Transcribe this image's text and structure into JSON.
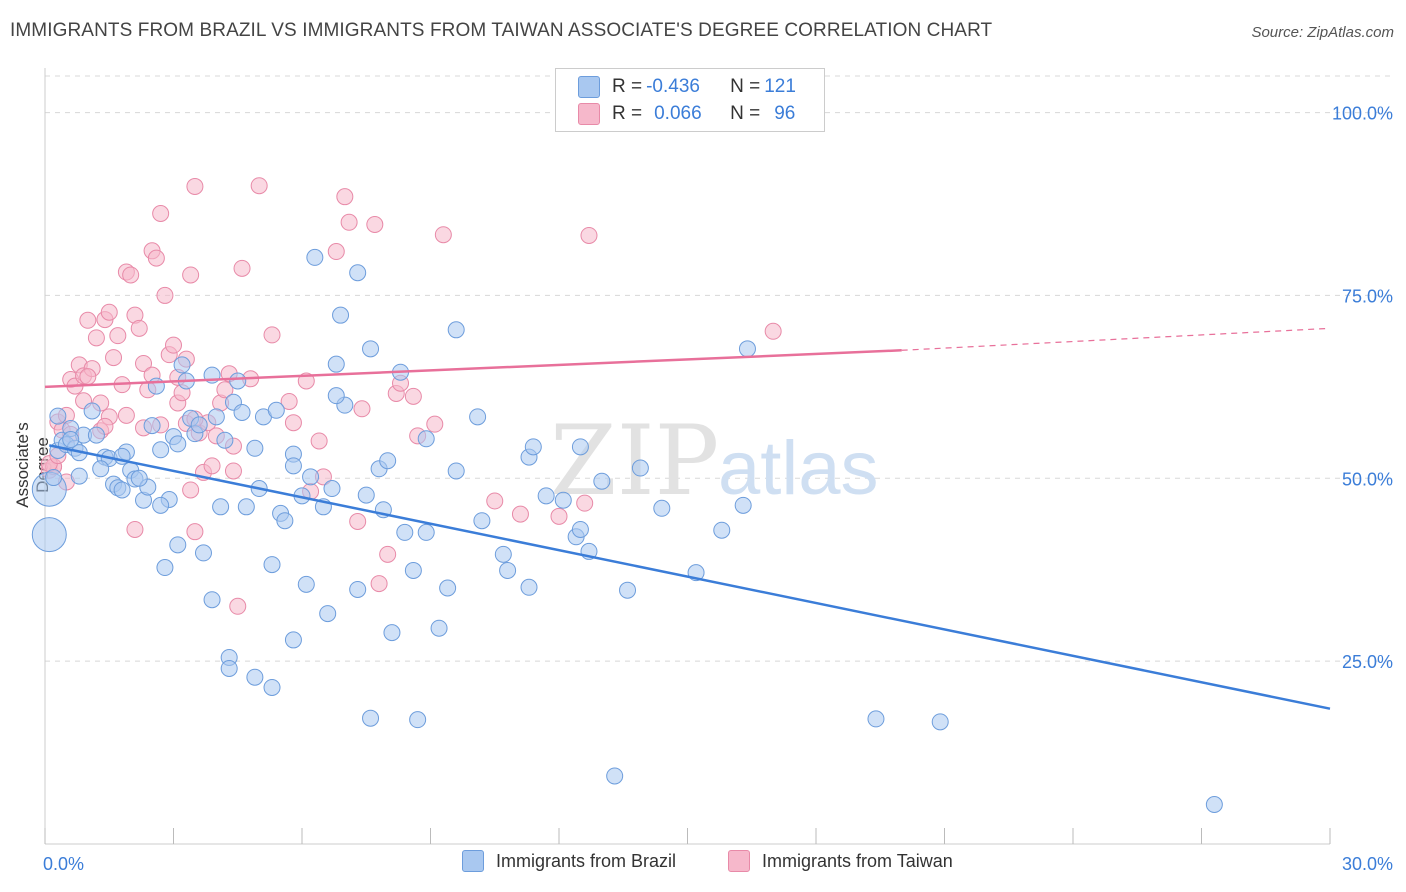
{
  "title": "IMMIGRANTS FROM BRAZIL VS IMMIGRANTS FROM TAIWAN ASSOCIATE'S DEGREE CORRELATION CHART",
  "source": "Source: ZipAtlas.com",
  "watermark_zip": "ZIP",
  "watermark_atlas": "atlas",
  "colors": {
    "brazil_fill": "#a9c8f0",
    "brazil_stroke": "#6d9ddc",
    "brazil_line": "#3b7dd8",
    "taiwan_fill": "#f6b8cb",
    "taiwan_stroke": "#e88aa8",
    "taiwan_line": "#e8709a",
    "grid": "#d8d8d8",
    "tick_label": "#3b7dd8"
  },
  "stats": {
    "brazil": {
      "r_label": "R = ",
      "r_value": "-0.436",
      "n_label": "N = ",
      "n_value": "121"
    },
    "taiwan": {
      "r_label": "R = ",
      "r_value": "0.066",
      "n_label": "N = ",
      "n_value": "96"
    }
  },
  "chart_data": {
    "type": "scatter",
    "title": "IMMIGRANTS FROM BRAZIL VS IMMIGRANTS FROM TAIWAN ASSOCIATE'S DEGREE CORRELATION CHART",
    "xlabel": "",
    "ylabel": "Associate's Degree",
    "xlim": [
      0,
      30
    ],
    "ylim": [
      0,
      105
    ],
    "x_tick_labels": [
      "0.0%",
      "30.0%"
    ],
    "y_tick_labels": [
      "25.0%",
      "50.0%",
      "75.0%",
      "100.0%"
    ],
    "y_ticks": [
      25,
      50,
      75,
      100
    ],
    "grid": true,
    "legend_position": "bottom",
    "series": [
      {
        "name": "Immigrants from Brazil",
        "trend": {
          "x": [
            0.1,
            30
          ],
          "y": [
            54.5,
            18.5
          ]
        },
        "points": [
          [
            0.1,
            42.3
          ],
          [
            0.1,
            48.5
          ],
          [
            0.2,
            50.1
          ],
          [
            0.3,
            53.8
          ],
          [
            0.4,
            55.2
          ],
          [
            0.5,
            54.6
          ],
          [
            0.6,
            56.8
          ],
          [
            0.7,
            54.1
          ],
          [
            0.8,
            53.5
          ],
          [
            0.9,
            55.9
          ],
          [
            1.1,
            59.2
          ],
          [
            1.2,
            55.9
          ],
          [
            1.4,
            52.9
          ],
          [
            1.5,
            52.7
          ],
          [
            1.6,
            49.2
          ],
          [
            1.7,
            48.7
          ],
          [
            1.8,
            48.4
          ],
          [
            1.9,
            53.6
          ],
          [
            2.0,
            51.1
          ],
          [
            2.1,
            49.9
          ],
          [
            2.3,
            47.0
          ],
          [
            2.4,
            48.8
          ],
          [
            2.5,
            57.2
          ],
          [
            2.6,
            62.6
          ],
          [
            2.7,
            53.9
          ],
          [
            2.8,
            37.8
          ],
          [
            3.0,
            55.7
          ],
          [
            3.1,
            40.9
          ],
          [
            3.1,
            54.7
          ],
          [
            3.2,
            65.5
          ],
          [
            3.3,
            63.3
          ],
          [
            3.5,
            56.1
          ],
          [
            3.7,
            39.8
          ],
          [
            3.9,
            33.4
          ],
          [
            4.0,
            58.4
          ],
          [
            4.1,
            46.1
          ],
          [
            4.2,
            55.2
          ],
          [
            4.3,
            25.5
          ],
          [
            4.4,
            60.4
          ],
          [
            4.5,
            63.3
          ],
          [
            4.6,
            59.0
          ],
          [
            4.7,
            46.1
          ],
          [
            4.9,
            54.1
          ],
          [
            5.0,
            48.6
          ],
          [
            5.1,
            58.4
          ],
          [
            5.3,
            21.4
          ],
          [
            5.3,
            38.2
          ],
          [
            5.5,
            45.2
          ],
          [
            5.6,
            44.2
          ],
          [
            5.8,
            53.3
          ],
          [
            5.8,
            27.9
          ],
          [
            6.0,
            47.6
          ],
          [
            6.2,
            50.2
          ],
          [
            6.3,
            80.2
          ],
          [
            6.5,
            46.1
          ],
          [
            6.6,
            31.5
          ],
          [
            6.8,
            65.6
          ],
          [
            6.9,
            72.3
          ],
          [
            7.0,
            60.0
          ],
          [
            7.3,
            34.8
          ],
          [
            7.3,
            78.1
          ],
          [
            7.5,
            47.7
          ],
          [
            7.6,
            67.7
          ],
          [
            7.8,
            51.3
          ],
          [
            8.1,
            28.9
          ],
          [
            8.3,
            64.5
          ],
          [
            8.4,
            42.6
          ],
          [
            8.6,
            37.4
          ],
          [
            8.9,
            55.4
          ],
          [
            8.9,
            42.6
          ],
          [
            9.2,
            29.5
          ],
          [
            9.4,
            35.0
          ],
          [
            9.6,
            70.3
          ],
          [
            10.2,
            44.2
          ],
          [
            10.7,
            39.6
          ],
          [
            10.8,
            37.4
          ],
          [
            11.3,
            35.1
          ],
          [
            11.3,
            52.9
          ],
          [
            11.7,
            47.6
          ],
          [
            12.1,
            47.0
          ],
          [
            12.4,
            42.0
          ],
          [
            12.5,
            43.0
          ],
          [
            12.5,
            54.3
          ],
          [
            13.0,
            49.6
          ],
          [
            13.6,
            34.7
          ],
          [
            13.9,
            51.4
          ],
          [
            14.4,
            45.9
          ],
          [
            15.2,
            37.1
          ],
          [
            15.8,
            42.9
          ],
          [
            16.3,
            46.3
          ],
          [
            16.4,
            67.7
          ],
          [
            19.4,
            17.1
          ],
          [
            20.9,
            16.7
          ],
          [
            13.3,
            9.3
          ],
          [
            27.3,
            5.4
          ],
          [
            5.8,
            51.7
          ],
          [
            3.4,
            58.2
          ],
          [
            2.2,
            50.0
          ],
          [
            1.3,
            51.3
          ],
          [
            0.3,
            58.5
          ],
          [
            4.9,
            22.8
          ],
          [
            6.7,
            48.6
          ],
          [
            8.0,
            52.4
          ],
          [
            10.1,
            58.4
          ],
          [
            7.6,
            17.2
          ],
          [
            8.7,
            17.0
          ],
          [
            4.3,
            24.0
          ],
          [
            2.9,
            47.1
          ],
          [
            6.1,
            35.5
          ],
          [
            9.6,
            51.0
          ],
          [
            1.8,
            53.0
          ],
          [
            3.6,
            57.3
          ],
          [
            11.4,
            54.3
          ],
          [
            0.6,
            55.3
          ],
          [
            2.7,
            46.3
          ],
          [
            5.4,
            59.3
          ],
          [
            7.9,
            45.7
          ],
          [
            12.7,
            40.0
          ],
          [
            6.8,
            61.3
          ],
          [
            3.9,
            64.1
          ],
          [
            0.8,
            50.3
          ]
        ]
      },
      {
        "name": "Immigrants from Taiwan",
        "trend": {
          "x": [
            0.0,
            20.0
          ],
          "y": [
            62.5,
            67.5
          ]
        },
        "trend_extension": {
          "x": [
            20.0,
            30.0
          ],
          "y": [
            67.5,
            70.5
          ]
        },
        "points": [
          [
            0.1,
            51.1
          ],
          [
            0.2,
            51.6
          ],
          [
            0.3,
            57.7
          ],
          [
            0.4,
            56.6
          ],
          [
            0.5,
            58.6
          ],
          [
            0.6,
            63.5
          ],
          [
            0.7,
            62.6
          ],
          [
            0.8,
            65.5
          ],
          [
            0.9,
            64.0
          ],
          [
            1.0,
            71.6
          ],
          [
            1.1,
            65.0
          ],
          [
            1.2,
            69.2
          ],
          [
            1.3,
            56.5
          ],
          [
            1.4,
            71.7
          ],
          [
            1.5,
            72.7
          ],
          [
            1.6,
            66.5
          ],
          [
            1.7,
            69.5
          ],
          [
            1.8,
            62.8
          ],
          [
            1.9,
            78.2
          ],
          [
            2.0,
            77.8
          ],
          [
            2.1,
            72.3
          ],
          [
            2.2,
            70.5
          ],
          [
            2.3,
            65.7
          ],
          [
            2.4,
            62.1
          ],
          [
            2.5,
            81.1
          ],
          [
            2.6,
            80.1
          ],
          [
            2.7,
            86.2
          ],
          [
            2.8,
            75.0
          ],
          [
            2.9,
            66.9
          ],
          [
            3.0,
            68.2
          ],
          [
            3.1,
            60.3
          ],
          [
            3.2,
            61.7
          ],
          [
            3.3,
            57.5
          ],
          [
            3.4,
            77.8
          ],
          [
            3.5,
            89.9
          ],
          [
            3.6,
            56.2
          ],
          [
            3.7,
            50.8
          ],
          [
            3.8,
            57.6
          ],
          [
            4.0,
            55.8
          ],
          [
            4.1,
            60.3
          ],
          [
            4.2,
            62.1
          ],
          [
            4.3,
            64.3
          ],
          [
            4.4,
            54.4
          ],
          [
            4.6,
            78.7
          ],
          [
            4.8,
            63.6
          ],
          [
            5.0,
            90.0
          ],
          [
            5.3,
            69.6
          ],
          [
            5.7,
            60.5
          ],
          [
            6.1,
            63.3
          ],
          [
            6.5,
            50.2
          ],
          [
            6.8,
            81.0
          ],
          [
            7.0,
            88.5
          ],
          [
            7.1,
            85.0
          ],
          [
            7.3,
            44.1
          ],
          [
            7.4,
            59.5
          ],
          [
            7.7,
            84.7
          ],
          [
            8.0,
            39.6
          ],
          [
            8.2,
            61.6
          ],
          [
            8.3,
            63.0
          ],
          [
            8.6,
            61.2
          ],
          [
            9.3,
            83.3
          ],
          [
            12.6,
            46.6
          ],
          [
            12.7,
            83.2
          ],
          [
            17.0,
            70.1
          ],
          [
            2.1,
            43.0
          ],
          [
            3.5,
            42.7
          ],
          [
            4.5,
            32.5
          ],
          [
            3.4,
            48.4
          ],
          [
            4.4,
            51.0
          ],
          [
            3.9,
            51.7
          ],
          [
            0.2,
            51.6
          ],
          [
            0.5,
            49.5
          ],
          [
            0.9,
            60.6
          ],
          [
            1.3,
            60.3
          ],
          [
            1.5,
            58.4
          ],
          [
            1.9,
            58.6
          ],
          [
            2.3,
            56.9
          ],
          [
            2.5,
            64.1
          ],
          [
            2.7,
            57.3
          ],
          [
            3.1,
            63.8
          ],
          [
            3.3,
            66.3
          ],
          [
            3.5,
            58.1
          ],
          [
            0.1,
            52.0
          ],
          [
            0.6,
            56.0
          ],
          [
            1.0,
            63.9
          ],
          [
            1.4,
            57.1
          ],
          [
            6.2,
            48.2
          ],
          [
            7.8,
            35.6
          ],
          [
            8.7,
            55.8
          ],
          [
            9.1,
            57.4
          ],
          [
            10.5,
            46.9
          ],
          [
            11.1,
            45.1
          ],
          [
            0.3,
            53.1
          ],
          [
            12.0,
            44.8
          ],
          [
            5.8,
            57.6
          ],
          [
            6.4,
            55.1
          ]
        ]
      }
    ]
  },
  "legend": {
    "brazil_label": "Immigrants from Brazil",
    "taiwan_label": "Immigrants from Taiwan"
  }
}
